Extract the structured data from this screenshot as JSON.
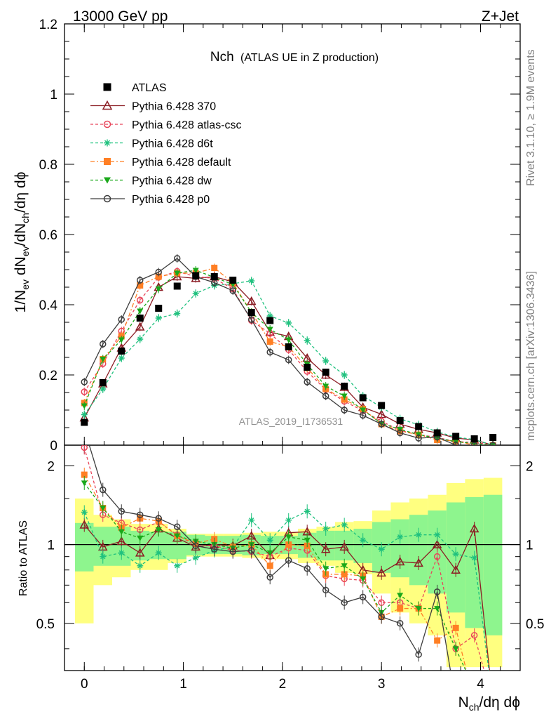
{
  "header": {
    "energy": "13000 GeV pp",
    "process": "Z+Jet"
  },
  "side": {
    "rivet": "Rivet 3.1.10, ≥ 1.9M events",
    "mcplots": "mcplots.cern.ch [arXiv:1306.3436]"
  },
  "chart_data": {
    "type": "line",
    "title_main": "Nch",
    "title_sub": "(ATLAS UE in Z production)",
    "analysis_label": "ATLAS_2019_I1736531",
    "xlabel": "N_ch/dη dφ",
    "ylabel": "1/N_ev dN_ev/dN_ch/dη dφ",
    "ratio_ylabel": "Ratio to ATLAS",
    "xlim": [
      -0.2,
      4.4
    ],
    "ylim": [
      0,
      1.2
    ],
    "ratio_ylim": [
      0.33,
      2.4
    ],
    "x_ticks": [
      "0",
      "1",
      "2",
      "3",
      "4"
    ],
    "y_ticks": [
      "0",
      "0.2",
      "0.4",
      "0.6",
      "0.8",
      "1",
      "1.2"
    ],
    "ratio_ticks": [
      "0.5",
      "1",
      "2"
    ],
    "x": [
      0,
      0.1875,
      0.375,
      0.5625,
      0.75,
      0.9375,
      1.125,
      1.3125,
      1.5,
      1.6875,
      1.875,
      2.0625,
      2.25,
      2.4375,
      2.625,
      2.8125,
      3.0,
      3.1875,
      3.375,
      3.5625,
      3.75,
      3.9375,
      4.125
    ],
    "data": {
      "name": "ATLAS",
      "values": [
        0.065,
        0.178,
        0.268,
        0.362,
        0.39,
        0.453,
        0.483,
        0.48,
        0.47,
        0.378,
        0.355,
        0.28,
        0.222,
        0.208,
        0.168,
        0.135,
        0.113,
        0.07,
        0.053,
        0.035,
        0.025,
        0.018,
        0.022
      ],
      "band_stat": [
        0.21,
        0.17,
        0.17,
        0.13,
        0.12,
        0.12,
        0.09,
        0.08,
        0.08,
        0.09,
        0.08,
        0.08,
        0.11,
        0.13,
        0.13,
        0.15,
        0.22,
        0.25,
        0.3,
        0.35,
        0.45,
        0.52,
        0.55
      ],
      "band_tot": [
        0.5,
        0.3,
        0.25,
        0.2,
        0.2,
        0.15,
        0.1,
        0.1,
        0.1,
        0.11,
        0.12,
        0.12,
        0.15,
        0.17,
        0.22,
        0.23,
        0.35,
        0.45,
        0.5,
        0.55,
        0.72,
        0.78,
        0.8
      ]
    },
    "series": [
      {
        "name": "Pythia 6.428 370",
        "color": "#8b1c23",
        "marker": "triangle",
        "dash": "",
        "values": [
          0.078,
          0.175,
          0.277,
          0.337,
          0.45,
          0.48,
          0.475,
          0.48,
          0.465,
          0.41,
          0.322,
          0.31,
          0.248,
          0.2,
          0.165,
          0.108,
          0.088,
          0.06,
          0.045,
          0.035,
          0.02,
          0.015,
          0.0
        ]
      },
      {
        "name": "Pythia 6.428 atlas-csc",
        "color": "#e8455a",
        "marker": "circle",
        "dash": "4,3",
        "values": [
          0.152,
          0.232,
          0.325,
          0.413,
          0.478,
          0.495,
          0.48,
          0.475,
          0.445,
          0.355,
          0.318,
          0.272,
          0.21,
          0.158,
          0.125,
          0.098,
          0.068,
          0.042,
          0.03,
          0.022,
          0.01,
          0.008,
          0.0
        ]
      },
      {
        "name": "Pythia 6.428 d6t",
        "color": "#1fc17e",
        "marker": "star",
        "dash": "4,3",
        "values": [
          0.087,
          0.16,
          0.248,
          0.302,
          0.362,
          0.375,
          0.432,
          0.455,
          0.46,
          0.468,
          0.368,
          0.348,
          0.298,
          0.24,
          0.2,
          0.14,
          0.108,
          0.075,
          0.058,
          0.038,
          0.023,
          0.016,
          0.0
        ]
      },
      {
        "name": "Pythia 6.428 default",
        "color": "#ff7f24",
        "marker": "square",
        "dash": "6,3,2,3",
        "values": [
          0.12,
          0.245,
          0.31,
          0.455,
          0.48,
          0.49,
          0.49,
          0.505,
          0.462,
          0.378,
          0.295,
          0.28,
          0.22,
          0.16,
          0.13,
          0.103,
          0.06,
          0.04,
          0.03,
          0.015,
          0.012,
          0.0,
          0.0
        ]
      },
      {
        "name": "Pythia 6.428 dw",
        "color": "#1aa81a",
        "marker": "triangle-down",
        "dash": "4,3",
        "values": [
          0.112,
          0.245,
          0.3,
          0.382,
          0.445,
          0.49,
          0.498,
          0.478,
          0.458,
          0.378,
          0.33,
          0.3,
          0.23,
          0.168,
          0.14,
          0.1,
          0.062,
          0.045,
          0.03,
          0.02,
          0.01,
          0.005,
          0.0
        ]
      },
      {
        "name": "Pythia 6.428 p0",
        "color": "#3d3d3d",
        "marker": "circle",
        "dash": "",
        "values": [
          0.18,
          0.288,
          0.358,
          0.47,
          0.493,
          0.532,
          0.48,
          0.463,
          0.44,
          0.358,
          0.265,
          0.243,
          0.18,
          0.14,
          0.1,
          0.085,
          0.06,
          0.035,
          0.02,
          0.023,
          0.0,
          0.0,
          0.0
        ]
      }
    ],
    "ratios": [
      [
        1.19,
        0.98,
        1.03,
        0.93,
        1.15,
        1.06,
        0.98,
        1.0,
        0.99,
        1.08,
        0.91,
        1.11,
        1.12,
        0.96,
        0.98,
        0.8,
        0.78,
        0.86,
        0.85,
        1.0,
        0.8,
        1.15,
        0.25
      ],
      [
        2.35,
        1.3,
        1.21,
        1.14,
        1.22,
        1.09,
        0.99,
        0.99,
        0.95,
        0.94,
        0.9,
        0.97,
        0.95,
        0.76,
        0.74,
        0.73,
        0.6,
        0.6,
        0.57,
        0.9,
        0.4,
        0.45,
        0.25
      ],
      [
        1.33,
        0.9,
        0.93,
        0.83,
        0.93,
        0.83,
        0.89,
        0.95,
        0.98,
        1.24,
        1.04,
        1.24,
        1.34,
        1.15,
        1.19,
        1.04,
        0.96,
        1.07,
        1.09,
        1.09,
        0.92,
        0.89,
        0.25
      ],
      [
        1.85,
        1.38,
        1.16,
        1.26,
        1.23,
        1.08,
        1.01,
        1.05,
        0.98,
        1.0,
        0.83,
        1.0,
        0.99,
        0.77,
        0.77,
        0.76,
        0.53,
        0.57,
        0.57,
        0.43,
        0.48,
        0.25,
        0.25
      ],
      [
        1.72,
        1.38,
        1.12,
        1.06,
        1.14,
        1.08,
        1.03,
        1.0,
        0.97,
        1.0,
        0.93,
        1.07,
        1.04,
        0.81,
        0.83,
        0.74,
        0.55,
        0.64,
        0.57,
        0.57,
        0.4,
        0.28,
        0.25
      ],
      [
        2.77,
        1.62,
        1.34,
        1.3,
        1.26,
        1.17,
        0.99,
        0.96,
        0.94,
        0.95,
        0.75,
        0.87,
        0.81,
        0.67,
        0.6,
        0.63,
        0.53,
        0.5,
        0.38,
        0.66,
        0.25,
        0.25,
        0.25
      ]
    ]
  }
}
